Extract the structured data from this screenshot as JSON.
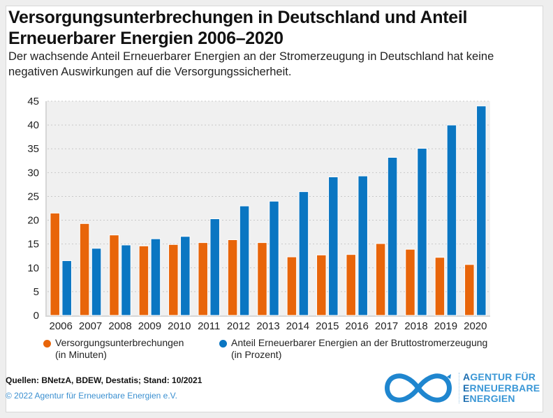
{
  "title": "Versorgungsunterbrechungen in Deutschland und Anteil Erneuerbarer Energien 2006–2020",
  "subtitle": "Der wachsende Anteil Erneuerbarer Energien an der Stromerzeugung in Deutschland hat keine negativen Auswirkungen auf die Versorgungssicherheit.",
  "colors": {
    "outage": "#E8650A",
    "renewables": "#0A76C2",
    "plot_bg": "#F0F0F0",
    "grid": "#C8C8C8",
    "logo": "#3A97D6"
  },
  "chart_data": {
    "type": "bar",
    "title": "Versorgungsunterbrechungen in Deutschland und Anteil Erneuerbarer Energien 2006–2020",
    "xlabel": "",
    "ylabel": "",
    "ylim": [
      0,
      45
    ],
    "yticks": [
      0,
      5,
      10,
      15,
      20,
      25,
      30,
      35,
      40,
      45
    ],
    "grid": true,
    "legend_position": "bottom",
    "categories": [
      "2006",
      "2007",
      "2008",
      "2009",
      "2010",
      "2011",
      "2012",
      "2013",
      "2014",
      "2015",
      "2016",
      "2017",
      "2018",
      "2019",
      "2020"
    ],
    "series": [
      {
        "name": "Versorgungsunterbrechungen (in Minuten)",
        "color": "#E8650A",
        "values": [
          21.5,
          19.3,
          16.9,
          14.6,
          14.9,
          15.3,
          15.9,
          15.3,
          12.3,
          12.7,
          12.8,
          15.1,
          13.9,
          12.2,
          10.7
        ]
      },
      {
        "name": "Anteil Erneuerbarer Energien an der Bruttostromerzeugung (in Prozent)",
        "color": "#0A76C2",
        "values": [
          11.5,
          14.1,
          14.8,
          16.1,
          16.6,
          20.3,
          23.0,
          24.0,
          26.0,
          29.1,
          29.3,
          33.2,
          35.1,
          40.0,
          44.0
        ]
      }
    ]
  },
  "legend": [
    {
      "line1": "Versorgungsunterbrechungen",
      "line2": "(in Minuten)"
    },
    {
      "line1": "Anteil Erneuerbarer Energien an der Bruttostromerzeugung",
      "line2": "(in Prozent)"
    }
  ],
  "footer": {
    "sources": "Quellen: BNetzA, BDEW, Destatis; Stand: 10/2021",
    "copyright": "© 2022 Agentur für Erneuerbare Energien e.V."
  },
  "logo": {
    "lines": [
      {
        "first": "A",
        "rest": "GENTUR FÜR"
      },
      {
        "first": "E",
        "rest": "RNEUERBARE"
      },
      {
        "first": "E",
        "rest": "NERGIEN"
      }
    ]
  }
}
